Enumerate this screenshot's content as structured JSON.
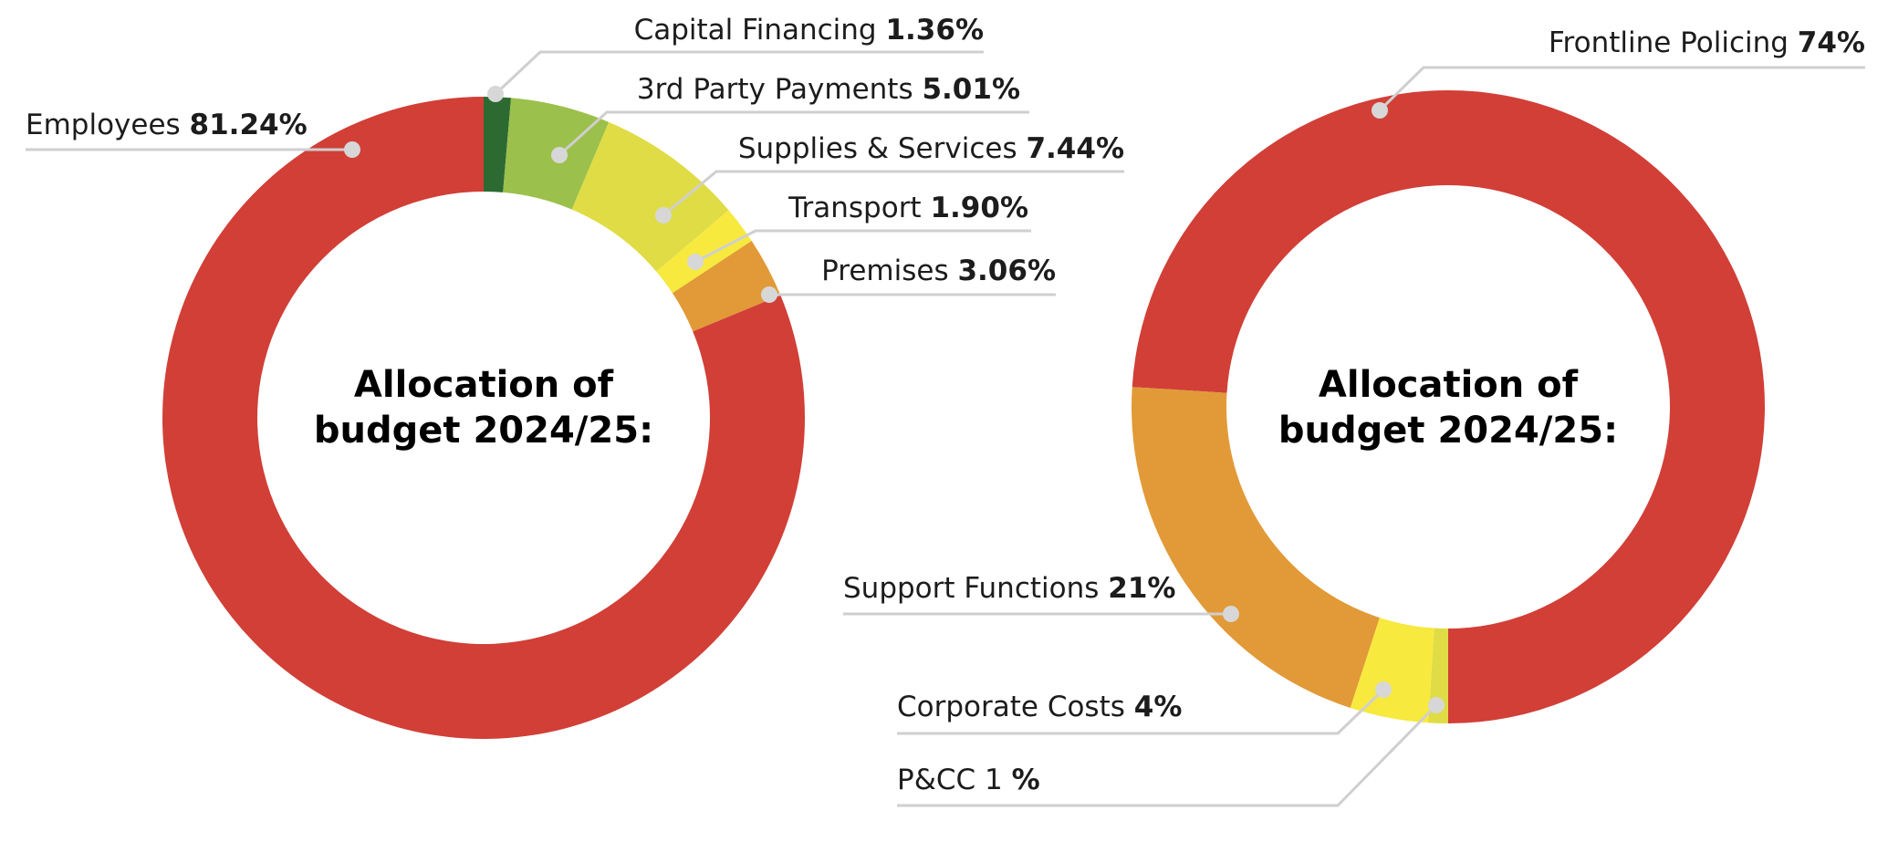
{
  "chart_data": [
    {
      "type": "pie",
      "variant": "donut",
      "title_lines": [
        "Allocation of",
        "budget 2024/25:"
      ],
      "slices": [
        {
          "label": "Capital Financing",
          "value_text": "1.36%",
          "value": 1.36,
          "color": "#2c6a32"
        },
        {
          "label": "3rd Party Payments",
          "value_text": "5.01%",
          "value": 5.01,
          "color": "#9cc04c"
        },
        {
          "label": "Supplies & Services",
          "value_text": "7.44%",
          "value": 7.44,
          "color": "#dfdc45"
        },
        {
          "label": "Transport",
          "value_text": "1.90%",
          "value": 1.9,
          "color": "#f7e93e"
        },
        {
          "label": "Premises",
          "value_text": "3.06%",
          "value": 3.06,
          "color": "#e19a37"
        },
        {
          "label": "Employees",
          "value_text": "81.24%",
          "value": 81.24,
          "color": "#d13f37"
        }
      ]
    },
    {
      "type": "pie",
      "variant": "donut",
      "title_lines": [
        "Allocation of",
        "budget 2024/25:"
      ],
      "slices": [
        {
          "label": "Frontline Policing",
          "value_text": "74%",
          "value": 74,
          "color": "#d13f37"
        },
        {
          "label": "Support Functions",
          "value_text": "21%",
          "value": 21,
          "color": "#e19a37"
        },
        {
          "label": "Corporate Costs",
          "value_text": "4%",
          "value": 4,
          "color": "#f7e93e"
        },
        {
          "label": "P&CC 1",
          "value_text": "%",
          "value": 1,
          "color": "#dfdc45"
        }
      ]
    }
  ]
}
